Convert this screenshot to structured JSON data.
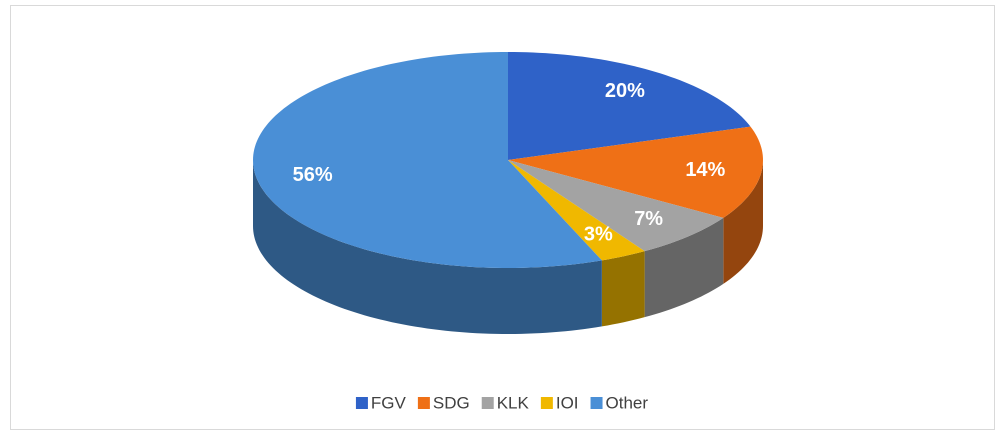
{
  "chart_data": {
    "type": "pie3d",
    "categories": [
      "FGV",
      "SDG",
      "KLK",
      "IOI",
      "Other"
    ],
    "values": [
      20,
      14,
      7,
      3,
      56
    ],
    "value_labels": [
      "20%",
      "14%",
      "7%",
      "3%",
      "56%"
    ],
    "colors": [
      "#2f62c8",
      "#ef7016",
      "#a3a3a3",
      "#f0b800",
      "#4a8fd6"
    ],
    "legend": "bottom"
  }
}
